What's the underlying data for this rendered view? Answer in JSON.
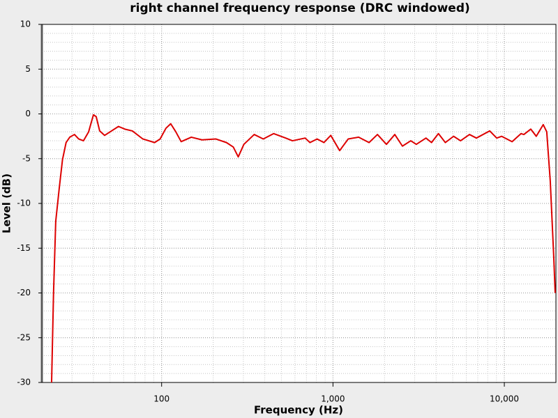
{
  "chart_data": {
    "type": "line",
    "title": "right channel frequency response (DRC windowed)",
    "x_label": "Frequency (Hz)",
    "y_label": "Level (dB)",
    "x_scale": "log",
    "grid": true,
    "color": "#dd0000",
    "xlim": [
      20,
      20000
    ],
    "ylim": [
      -30,
      10
    ],
    "xticks": [
      100,
      {
        "value": 1000,
        "label": "1,000"
      },
      {
        "value": 10000,
        "label": "10,000"
      }
    ],
    "yticks": [
      10,
      5,
      0,
      -5,
      -10,
      -15,
      -20,
      -25,
      -30
    ],
    "x": [
      22.8,
      23.4,
      24.1,
      25.3,
      26.4,
      27.7,
      29.1,
      31,
      32.8,
      35,
      37.5,
      40,
      41.5,
      43.5,
      46.5,
      51,
      56,
      61,
      67.5,
      77.7,
      91,
      98,
      106,
      113,
      121,
      130,
      149,
      172,
      207,
      239,
      262,
      280,
      302,
      347,
      392,
      451,
      530,
      580,
      688,
      734,
      808,
      886,
      971,
      1094,
      1227,
      1411,
      1624,
      1818,
      2051,
      2295,
      2543,
      2845,
      3064,
      3489,
      3759,
      4125,
      4527,
      5058,
      5553,
      6261,
      6871,
      8220,
      9030,
      9640,
      11100,
      12520,
      13000,
      14270,
      15360,
      16870,
      17680,
      18540,
      19430,
      19800
    ],
    "values": [
      -30,
      -20,
      -12,
      -8.2,
      -5.1,
      -3.2,
      -2.6,
      -2.3,
      -2.8,
      -3,
      -2,
      -0.1,
      -0.3,
      -1.9,
      -2.4,
      -1.9,
      -1.4,
      -1.7,
      -1.9,
      -2.8,
      -3.2,
      -2.8,
      -1.6,
      -1.1,
      -2,
      -3.1,
      -2.6,
      -2.9,
      -2.8,
      -3.2,
      -3.7,
      -4.8,
      -3.4,
      -2.3,
      -2.8,
      -2.2,
      -2.7,
      -3,
      -2.7,
      -3.2,
      -2.8,
      -3.2,
      -2.4,
      -4.1,
      -2.8,
      -2.6,
      -3.2,
      -2.3,
      -3.4,
      -2.3,
      -3.6,
      -3,
      -3.4,
      -2.7,
      -3.2,
      -2.2,
      -3.2,
      -2.5,
      -3,
      -2.3,
      -2.7,
      -1.9,
      -2.7,
      -2.5,
      -3.1,
      -2.2,
      -2.3,
      -1.7,
      -2.5,
      -1.2,
      -2,
      -7.5,
      -16,
      -20
    ]
  }
}
